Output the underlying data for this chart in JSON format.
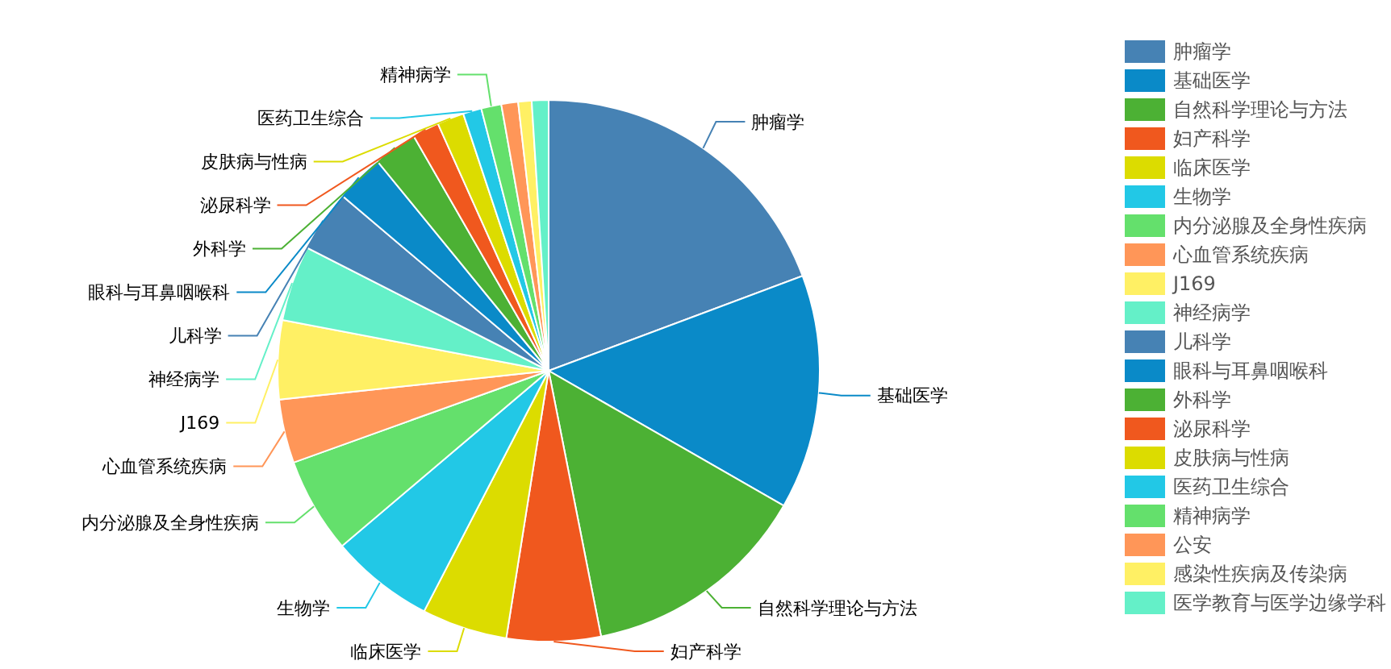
{
  "chart_data": {
    "type": "pie",
    "legend": "right",
    "categories": [
      "肿瘤学",
      "基础医学",
      "自然科学理论与方法",
      "妇产科学",
      "临床医学",
      "生物学",
      "内分泌腺及全身性疾病",
      "心血管系统疾病",
      "J169",
      "神经病学",
      "儿科学",
      "眼科与耳鼻咽喉科",
      "外科学",
      "泌尿科学",
      "皮肤病与性病",
      "医药卫生综合",
      "精神病学",
      "公安",
      "感染性疾病及传染病",
      "医学教育与医学边缘学科"
    ],
    "values": [
      19.3,
      14.0,
      13.6,
      5.6,
      5.1,
      6.2,
      5.7,
      3.8,
      4.7,
      4.5,
      3.7,
      2.9,
      2.6,
      1.6,
      1.6,
      1.1,
      1.2,
      1.0,
      0.8,
      1.0
    ],
    "colors": [
      "#4682b4",
      "#0a8ac8",
      "#4cb134",
      "#f0581e",
      "#dcdc00",
      "#22c8e6",
      "#64e06c",
      "#ff9658",
      "#fff064",
      "#64f0c8",
      "#4682b4",
      "#0a8ac8",
      "#4cb134",
      "#f0581e",
      "#dcdc00",
      "#22c8e6",
      "#64e06c",
      "#ff9658",
      "#fff064",
      "#64f0c8"
    ]
  }
}
